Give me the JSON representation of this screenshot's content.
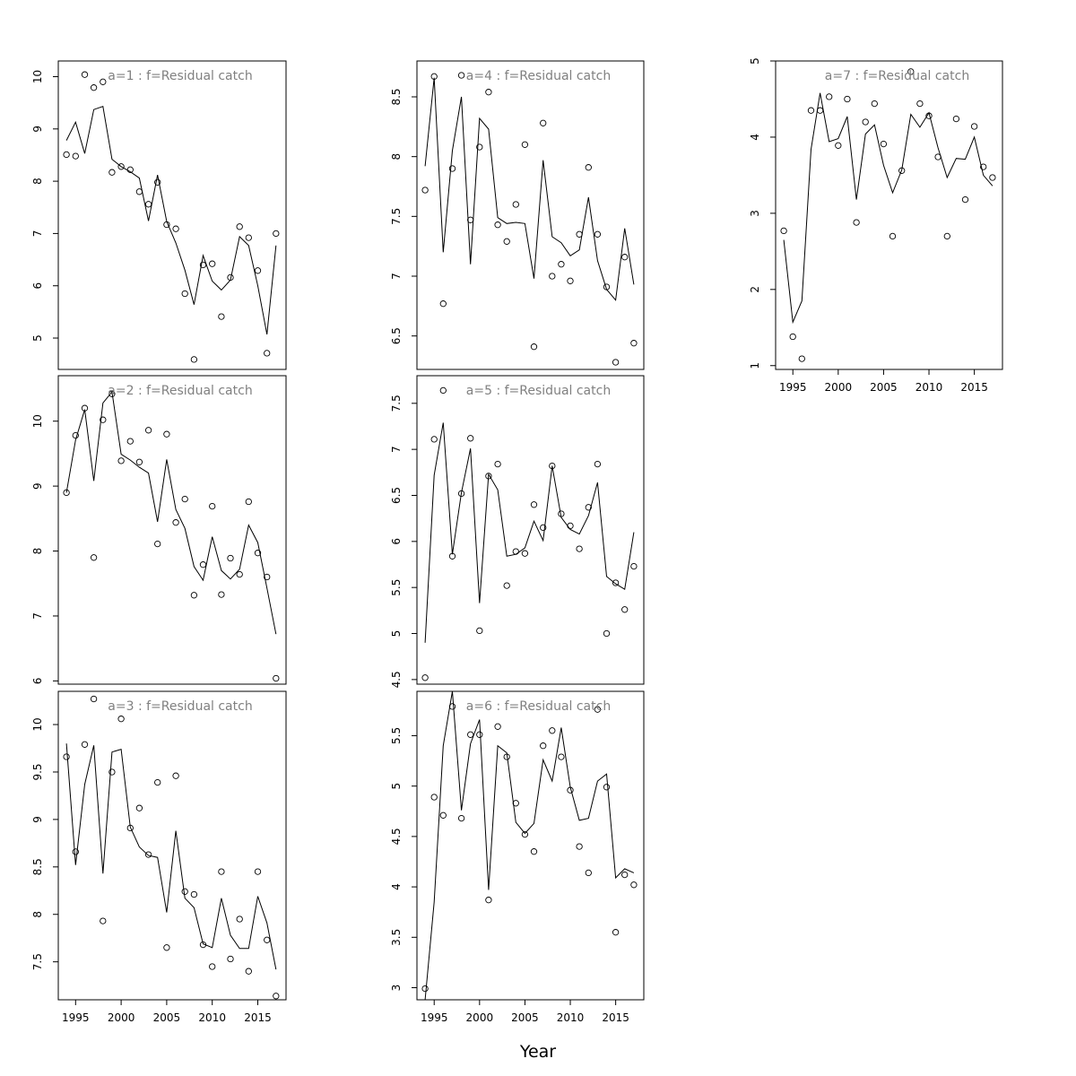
{
  "figure": {
    "xlabel": "Year"
  },
  "chart_data": [
    {
      "type": "scatter",
      "title": "a=1  :  f=Residual catch",
      "x": [
        1994,
        1995,
        1996,
        1997,
        1998,
        1999,
        2000,
        2001,
        2002,
        2003,
        2004,
        2005,
        2006,
        2007,
        2008,
        2009,
        2010,
        2011,
        2012,
        2013,
        2014,
        2015,
        2016,
        2017
      ],
      "series": [
        {
          "role": "observed",
          "values": [
            8.51,
            8.48,
            10.04,
            9.79,
            9.9,
            8.17,
            8.28,
            8.22,
            7.8,
            7.56,
            7.98,
            7.17,
            7.09,
            5.85,
            4.59,
            6.4,
            6.42,
            5.41,
            6.16,
            7.13,
            6.92,
            6.29,
            4.71,
            7.0
          ]
        },
        {
          "role": "fitted",
          "values": [
            8.78,
            9.13,
            8.53,
            9.37,
            9.43,
            8.42,
            8.28,
            8.18,
            8.06,
            7.24,
            8.12,
            7.23,
            6.82,
            6.3,
            5.64,
            6.58,
            6.09,
            5.92,
            6.11,
            6.94,
            6.77,
            6.0,
            5.07,
            6.77
          ]
        }
      ],
      "ylim": [
        4.4,
        10.3
      ],
      "yticks": [
        5,
        6,
        7,
        8,
        9,
        10
      ],
      "xticks": [
        1995,
        2000,
        2005,
        2010,
        2015
      ],
      "show_xaxis": false
    },
    {
      "type": "scatter",
      "title": "a=2  :  f=Residual catch",
      "x": [
        1994,
        1995,
        1996,
        1997,
        1998,
        1999,
        2000,
        2001,
        2002,
        2003,
        2004,
        2005,
        2006,
        2007,
        2008,
        2009,
        2010,
        2011,
        2012,
        2013,
        2014,
        2015,
        2016,
        2017
      ],
      "series": [
        {
          "role": "observed",
          "values": [
            8.9,
            9.78,
            10.2,
            7.9,
            10.02,
            10.42,
            9.39,
            9.69,
            9.37,
            9.86,
            8.11,
            9.8,
            8.44,
            8.8,
            7.32,
            7.79,
            8.69,
            7.33,
            7.89,
            7.64,
            8.76,
            7.97,
            7.6,
            6.04
          ]
        },
        {
          "role": "fitted",
          "values": [
            8.9,
            9.71,
            10.18,
            9.08,
            10.28,
            10.45,
            9.49,
            9.4,
            9.29,
            9.2,
            8.45,
            9.41,
            8.64,
            8.35,
            7.76,
            7.55,
            8.22,
            7.7,
            7.57,
            7.72,
            8.4,
            8.13,
            7.43,
            6.72
          ]
        }
      ],
      "ylim": [
        5.95,
        10.7
      ],
      "yticks": [
        6,
        7,
        8,
        9,
        10
      ],
      "xticks": [
        1995,
        2000,
        2005,
        2010,
        2015
      ],
      "show_xaxis": false
    },
    {
      "type": "scatter",
      "title": "a=3  :  f=Residual catch",
      "x": [
        1994,
        1995,
        1996,
        1997,
        1998,
        1999,
        2000,
        2001,
        2002,
        2003,
        2004,
        2005,
        2006,
        2007,
        2008,
        2009,
        2010,
        2011,
        2012,
        2013,
        2014,
        2015,
        2016,
        2017
      ],
      "series": [
        {
          "role": "observed",
          "values": [
            9.66,
            8.66,
            9.79,
            10.27,
            7.93,
            9.5,
            10.06,
            8.91,
            9.12,
            8.63,
            9.39,
            7.65,
            9.46,
            8.24,
            8.21,
            7.68,
            7.45,
            8.45,
            7.53,
            7.95,
            7.4,
            8.45,
            7.73,
            7.14
          ]
        },
        {
          "role": "fitted",
          "values": [
            9.8,
            8.52,
            9.37,
            9.78,
            8.43,
            9.71,
            9.74,
            8.92,
            8.71,
            8.62,
            8.6,
            8.02,
            8.88,
            8.17,
            8.07,
            7.69,
            7.65,
            8.17,
            7.78,
            7.64,
            7.64,
            8.19,
            7.91,
            7.42
          ]
        }
      ],
      "ylim": [
        7.1,
        10.35
      ],
      "yticks": [
        7.5,
        8.0,
        8.5,
        9.0,
        9.5,
        10.0
      ],
      "xticks": [
        1995,
        2000,
        2005,
        2010,
        2015
      ],
      "show_xaxis": true
    },
    {
      "type": "scatter",
      "title": "a=4  :  f=Residual catch",
      "x": [
        1994,
        1995,
        1996,
        1997,
        1998,
        1999,
        2000,
        2001,
        2002,
        2003,
        2004,
        2005,
        2006,
        2007,
        2008,
        2009,
        2010,
        2011,
        2012,
        2013,
        2014,
        2015,
        2016,
        2017
      ],
      "series": [
        {
          "role": "observed",
          "values": [
            7.72,
            8.67,
            6.77,
            7.9,
            8.68,
            7.47,
            8.08,
            8.54,
            7.43,
            7.29,
            7.6,
            8.1,
            6.41,
            8.28,
            7.0,
            7.1,
            6.96,
            7.35,
            7.91,
            7.35,
            6.91,
            6.28,
            7.16,
            6.44
          ]
        },
        {
          "role": "fitted",
          "values": [
            7.92,
            8.66,
            7.2,
            8.05,
            8.5,
            7.1,
            8.32,
            8.23,
            7.49,
            7.44,
            7.45,
            7.44,
            6.98,
            7.97,
            7.33,
            7.28,
            7.17,
            7.22,
            7.66,
            7.13,
            6.89,
            6.8,
            7.4,
            6.93
          ]
        }
      ],
      "ylim": [
        6.22,
        8.8
      ],
      "yticks": [
        6.5,
        7.0,
        7.5,
        8.0,
        8.5
      ],
      "xticks": [
        1995,
        2000,
        2005,
        2010,
        2015
      ],
      "show_xaxis": false
    },
    {
      "type": "scatter",
      "title": "a=5  :  f=Residual catch",
      "x": [
        1994,
        1995,
        1996,
        1997,
        1998,
        1999,
        2000,
        2001,
        2002,
        2003,
        2004,
        2005,
        2006,
        2007,
        2008,
        2009,
        2010,
        2011,
        2012,
        2013,
        2014,
        2015,
        2016,
        2017
      ],
      "series": [
        {
          "role": "observed",
          "values": [
            4.52,
            7.11,
            7.64,
            5.84,
            6.52,
            7.12,
            5.03,
            6.71,
            6.84,
            5.52,
            5.89,
            5.87,
            6.4,
            6.15,
            6.82,
            6.3,
            6.17,
            5.92,
            6.37,
            6.84,
            5.0,
            5.55,
            5.26,
            5.73
          ]
        },
        {
          "role": "fitted",
          "values": [
            4.9,
            6.72,
            7.29,
            5.86,
            6.53,
            7.01,
            5.33,
            6.73,
            6.56,
            5.84,
            5.86,
            5.93,
            6.22,
            6.01,
            6.82,
            6.26,
            6.13,
            6.08,
            6.28,
            6.64,
            5.62,
            5.54,
            5.48,
            6.1
          ]
        }
      ],
      "ylim": [
        4.45,
        7.8
      ],
      "yticks": [
        4.5,
        5.0,
        5.5,
        6.0,
        6.5,
        7.0,
        7.5
      ],
      "xticks": [
        1995,
        2000,
        2005,
        2010,
        2015
      ],
      "show_xaxis": false
    },
    {
      "type": "scatter",
      "title": "a=6  :  f=Residual catch",
      "x": [
        1994,
        1995,
        1996,
        1997,
        1998,
        1999,
        2000,
        2001,
        2002,
        2003,
        2004,
        2005,
        2006,
        2007,
        2008,
        2009,
        2010,
        2011,
        2012,
        2013,
        2014,
        2015,
        2016,
        2017
      ],
      "series": [
        {
          "role": "observed",
          "values": [
            2.99,
            4.89,
            4.71,
            5.79,
            4.68,
            5.51,
            5.51,
            3.87,
            5.59,
            5.29,
            4.83,
            4.52,
            4.35,
            5.4,
            5.55,
            5.29,
            4.96,
            4.4,
            4.14,
            5.76,
            4.99,
            3.55,
            4.12,
            4.02
          ]
        },
        {
          "role": "fitted",
          "values": [
            2.88,
            3.85,
            5.4,
            5.94,
            4.76,
            5.42,
            5.66,
            3.97,
            5.4,
            5.33,
            4.64,
            4.53,
            4.63,
            5.26,
            5.05,
            5.58,
            4.99,
            4.66,
            4.68,
            5.05,
            5.12,
            4.09,
            4.18,
            4.14
          ]
        }
      ],
      "ylim": [
        2.88,
        5.94
      ],
      "yticks": [
        3.0,
        3.5,
        4.0,
        4.5,
        5.0,
        5.5
      ],
      "xticks": [
        1995,
        2000,
        2005,
        2010,
        2015
      ],
      "show_xaxis": true
    },
    {
      "type": "scatter",
      "title": "a=7  :  f=Residual catch",
      "x": [
        1994,
        1995,
        1996,
        1997,
        1998,
        1999,
        2000,
        2001,
        2002,
        2003,
        2004,
        2005,
        2006,
        2007,
        2008,
        2009,
        2010,
        2011,
        2012,
        2013,
        2014,
        2015,
        2016,
        2017
      ],
      "series": [
        {
          "role": "observed",
          "values": [
            2.77,
            1.38,
            1.09,
            4.35,
            4.35,
            4.53,
            3.89,
            4.5,
            2.88,
            4.2,
            4.44,
            3.91,
            2.7,
            3.56,
            4.86,
            4.44,
            4.28,
            3.74,
            2.7,
            4.24,
            3.18,
            4.14,
            3.61,
            3.47
          ]
        },
        {
          "role": "fitted",
          "values": [
            2.65,
            1.57,
            1.85,
            3.84,
            4.58,
            3.94,
            3.98,
            4.27,
            3.18,
            4.04,
            4.16,
            3.63,
            3.27,
            3.57,
            4.3,
            4.13,
            4.32,
            3.86,
            3.47,
            3.72,
            3.71,
            4.0,
            3.5,
            3.36
          ]
        }
      ],
      "ylim": [
        0.95,
        5.0
      ],
      "yticks": [
        1,
        2,
        3,
        4,
        5
      ],
      "xticks": [
        1995,
        2000,
        2005,
        2010,
        2015
      ],
      "show_xaxis": true
    }
  ]
}
